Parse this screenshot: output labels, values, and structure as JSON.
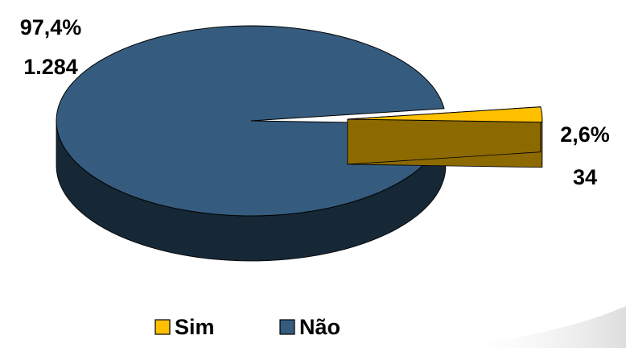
{
  "chart_data": {
    "type": "pie",
    "style": "3d-exploded",
    "legend_position": "bottom",
    "slices": [
      {
        "name": "Sim",
        "value": 34,
        "percent_label": "2,6%",
        "count_label": "34",
        "color": "#FFC000",
        "exploded": true
      },
      {
        "name": "Não",
        "value": 1284,
        "percent_label": "97,4%",
        "count_label": "1.284",
        "color": "#355C7E",
        "exploded": false
      }
    ]
  }
}
